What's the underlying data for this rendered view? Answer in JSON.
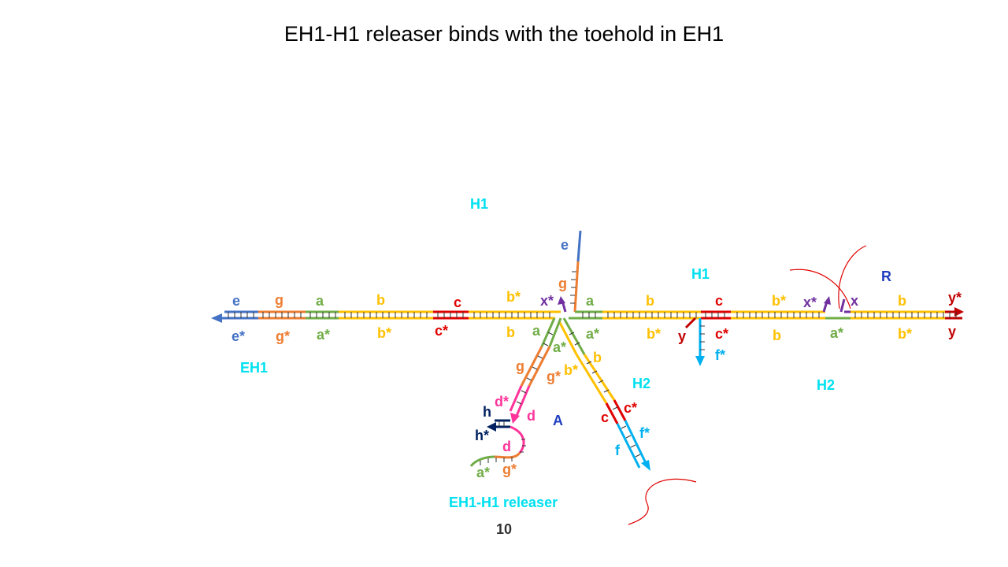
{
  "title": "EH1-H1 releaser binds with the toehold in EH1",
  "page_number": "10",
  "colors": {
    "e": "#4472c4",
    "g": "#ed7d31",
    "a": "#70ad47",
    "b": "#ffc000",
    "c": "#e00000",
    "f": "#00b0f0",
    "x": "#7030a0",
    "y": "#c00000",
    "d": "#ff3399",
    "h": "#002060",
    "cyan": "#00e0f0",
    "blue": "#1f3fbf"
  },
  "labels": {
    "h1_left": "H1",
    "h1_right": "H1",
    "eh1": "EH1",
    "h2_mid": "H2",
    "h2_right": "H2",
    "r": "R",
    "a_complex": "A",
    "releaser": "EH1-H1 releaser",
    "e": "e",
    "e_star": "e*",
    "g": "g",
    "g_star": "g*",
    "a": "a",
    "a_star": "a*",
    "b": "b",
    "b_star": "b*",
    "c": "c",
    "c_star": "c*",
    "x": "x",
    "x_star": "x*",
    "y": "y",
    "y_star": "y*",
    "f": "f",
    "f_star": "f*",
    "d": "d",
    "d_star": "d*",
    "h": "h",
    "h_star": "h*"
  }
}
